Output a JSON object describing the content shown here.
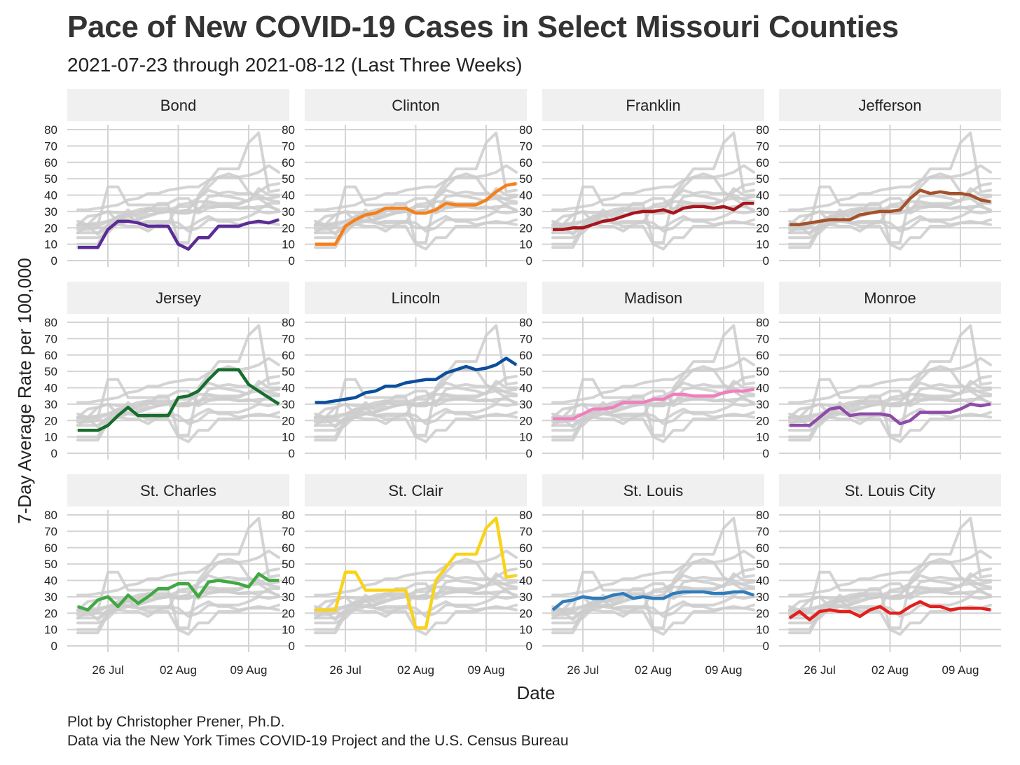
{
  "title": "Pace of New COVID-19 Cases in Select Missouri Counties",
  "subtitle": "2021-07-23 through 2021-08-12 (Last Three Weeks)",
  "caption": {
    "line1": "Plot by Christopher Prener, Ph.D.",
    "line2": "Data via the New York Times COVID-19 Project and the U.S. Census Bureau"
  },
  "chart_data": {
    "type": "line",
    "facets": "small multiples, 3 rows x 4 columns; each panel highlights one county in color over all counties in gray",
    "xlabel": "Date",
    "ylabel": "7-Day Average Rate per 100,000",
    "x": [
      "2021-07-23",
      "2021-07-24",
      "2021-07-25",
      "2021-07-26",
      "2021-07-27",
      "2021-07-28",
      "2021-07-29",
      "2021-07-30",
      "2021-07-31",
      "2021-08-01",
      "2021-08-02",
      "2021-08-03",
      "2021-08-04",
      "2021-08-05",
      "2021-08-06",
      "2021-08-07",
      "2021-08-08",
      "2021-08-09",
      "2021-08-10",
      "2021-08-11",
      "2021-08-12"
    ],
    "xlim": [
      "2021-07-23",
      "2021-08-12"
    ],
    "x_ticks": [
      {
        "date": "2021-07-26",
        "label": "26 Jul"
      },
      {
        "date": "2021-08-02",
        "label": "02 Aug"
      },
      {
        "date": "2021-08-09",
        "label": "09 Aug"
      }
    ],
    "ylim": [
      0,
      80
    ],
    "y_ticks": [
      0,
      10,
      20,
      30,
      40,
      50,
      60,
      70,
      80
    ],
    "grid": true,
    "legend": "none",
    "background_line_color": "#cccccc",
    "series": [
      {
        "name": "Bond",
        "color": "#5b2c96",
        "values": [
          8,
          8,
          8,
          19,
          24,
          24,
          23,
          21,
          21,
          21,
          10,
          7,
          14,
          14,
          21,
          21,
          21,
          23,
          24,
          23,
          25
        ]
      },
      {
        "name": "Clinton",
        "color": "#f77f18",
        "values": [
          10,
          10,
          10,
          21,
          25,
          28,
          29,
          32,
          32,
          32,
          29,
          29,
          31,
          35,
          34,
          34,
          34,
          37,
          42,
          46,
          47
        ]
      },
      {
        "name": "Franklin",
        "color": "#a6161c",
        "values": [
          19,
          19,
          20,
          20,
          22,
          24,
          25,
          27,
          29,
          30,
          30,
          31,
          29,
          32,
          33,
          33,
          32,
          33,
          31,
          35,
          35
        ]
      },
      {
        "name": "Jefferson",
        "color": "#a3522b",
        "values": [
          22,
          22,
          23,
          24,
          25,
          25,
          25,
          28,
          29,
          30,
          30,
          31,
          38,
          43,
          41,
          42,
          41,
          41,
          40,
          37,
          36
        ]
      },
      {
        "name": "Jersey",
        "color": "#176d2e",
        "values": [
          14,
          14,
          14,
          17,
          23,
          28,
          23,
          23,
          23,
          23,
          34,
          35,
          38,
          45,
          51,
          51,
          51,
          42,
          38,
          34,
          30
        ]
      },
      {
        "name": "Lincoln",
        "color": "#0b4e9c",
        "values": [
          31,
          31,
          32,
          33,
          34,
          37,
          38,
          41,
          41,
          43,
          44,
          45,
          45,
          49,
          51,
          53,
          51,
          52,
          54,
          58,
          54
        ]
      },
      {
        "name": "Madison",
        "color": "#f07fbe",
        "values": [
          21,
          21,
          21,
          24,
          27,
          27,
          28,
          31,
          31,
          31,
          33,
          33,
          36,
          36,
          35,
          35,
          35,
          37,
          38,
          38,
          39
        ]
      },
      {
        "name": "Monroe",
        "color": "#8e4ca8",
        "values": [
          17,
          17,
          17,
          22,
          27,
          28,
          23,
          24,
          24,
          24,
          23,
          18,
          20,
          25,
          25,
          25,
          25,
          27,
          30,
          29,
          30
        ]
      },
      {
        "name": "St. Charles",
        "color": "#41a842",
        "values": [
          24,
          22,
          28,
          30,
          24,
          31,
          26,
          30,
          35,
          35,
          38,
          38,
          30,
          39,
          40,
          39,
          38,
          36,
          44,
          40,
          40
        ]
      },
      {
        "name": "St. Clair",
        "color": "#f9d31a",
        "values": [
          22,
          22,
          22,
          45,
          45,
          34,
          34,
          34,
          34,
          34,
          11,
          11,
          40,
          48,
          56,
          56,
          56,
          72,
          78,
          42,
          43
        ]
      },
      {
        "name": "St. Louis",
        "color": "#2f7cbc",
        "values": [
          22,
          27,
          28,
          30,
          29,
          29,
          31,
          32,
          29,
          30,
          29,
          29,
          32,
          33,
          33,
          33,
          32,
          32,
          33,
          33,
          31
        ]
      },
      {
        "name": "St. Louis City",
        "color": "#e1201d",
        "values": [
          17,
          21,
          16,
          21,
          22,
          21,
          21,
          18,
          22,
          24,
          20,
          20,
          24,
          27,
          24,
          24,
          22,
          23,
          23,
          23,
          22
        ]
      }
    ]
  }
}
